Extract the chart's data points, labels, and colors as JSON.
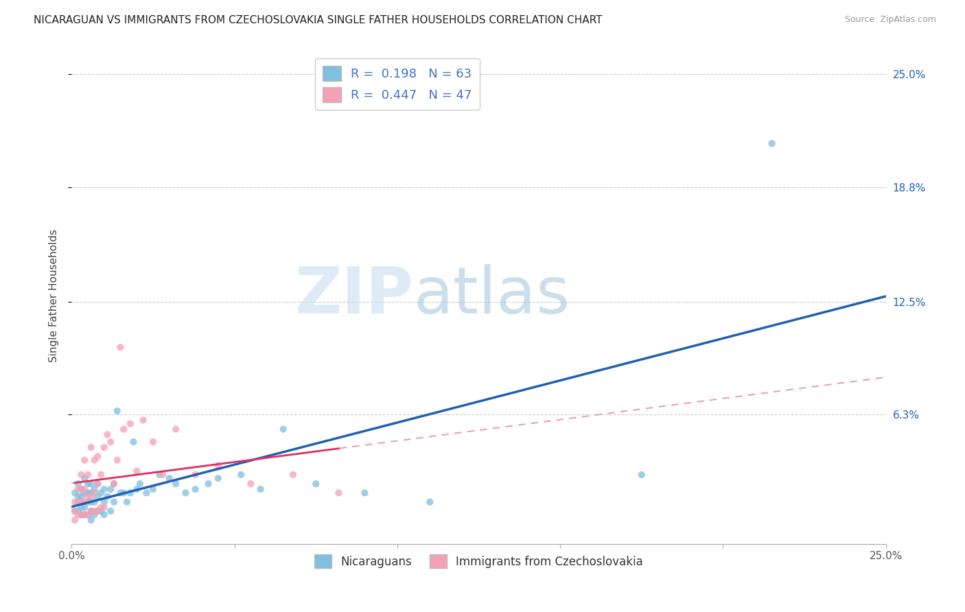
{
  "title": "NICARAGUAN VS IMMIGRANTS FROM CZECHOSLOVAKIA SINGLE FATHER HOUSEHOLDS CORRELATION CHART",
  "source": "Source: ZipAtlas.com",
  "ylabel": "Single Father Households",
  "ytick_labels_right": [
    "25.0%",
    "18.8%",
    "12.5%",
    "6.3%"
  ],
  "ytick_values_right": [
    0.25,
    0.188,
    0.125,
    0.063
  ],
  "xmin": 0.0,
  "xmax": 0.25,
  "ymin": -0.008,
  "ymax": 0.265,
  "blue_color": "#7fbfdf",
  "pink_color": "#f4a0b5",
  "blue_line_color": "#2060b0",
  "pink_line_color": "#e03060",
  "pink_dash_color": "#e8a0b8",
  "R_blue": 0.198,
  "N_blue": 63,
  "R_pink": 0.447,
  "N_pink": 47,
  "watermark_zip": "ZIP",
  "watermark_atlas": "atlas",
  "blue_scatter_x": [
    0.001,
    0.001,
    0.002,
    0.002,
    0.002,
    0.003,
    0.003,
    0.003,
    0.003,
    0.004,
    0.004,
    0.004,
    0.004,
    0.005,
    0.005,
    0.005,
    0.005,
    0.006,
    0.006,
    0.006,
    0.006,
    0.006,
    0.007,
    0.007,
    0.007,
    0.008,
    0.008,
    0.008,
    0.009,
    0.009,
    0.01,
    0.01,
    0.01,
    0.011,
    0.012,
    0.012,
    0.013,
    0.013,
    0.014,
    0.015,
    0.016,
    0.017,
    0.018,
    0.019,
    0.02,
    0.021,
    0.023,
    0.025,
    0.027,
    0.03,
    0.032,
    0.035,
    0.038,
    0.042,
    0.045,
    0.052,
    0.058,
    0.065,
    0.075,
    0.09,
    0.11,
    0.175,
    0.215
  ],
  "blue_scatter_y": [
    0.01,
    0.02,
    0.01,
    0.018,
    0.025,
    0.008,
    0.012,
    0.018,
    0.022,
    0.008,
    0.012,
    0.02,
    0.028,
    0.008,
    0.015,
    0.02,
    0.025,
    0.005,
    0.01,
    0.015,
    0.02,
    0.025,
    0.008,
    0.015,
    0.022,
    0.01,
    0.018,
    0.025,
    0.01,
    0.02,
    0.008,
    0.015,
    0.022,
    0.018,
    0.01,
    0.022,
    0.015,
    0.025,
    0.065,
    0.02,
    0.02,
    0.015,
    0.02,
    0.048,
    0.022,
    0.025,
    0.02,
    0.022,
    0.03,
    0.028,
    0.025,
    0.02,
    0.022,
    0.025,
    0.028,
    0.03,
    0.022,
    0.055,
    0.025,
    0.02,
    0.015,
    0.03,
    0.212
  ],
  "pink_scatter_x": [
    0.001,
    0.001,
    0.001,
    0.002,
    0.002,
    0.002,
    0.003,
    0.003,
    0.003,
    0.003,
    0.004,
    0.004,
    0.004,
    0.004,
    0.005,
    0.005,
    0.005,
    0.006,
    0.006,
    0.006,
    0.007,
    0.007,
    0.007,
    0.008,
    0.008,
    0.008,
    0.009,
    0.009,
    0.01,
    0.01,
    0.011,
    0.012,
    0.013,
    0.014,
    0.015,
    0.016,
    0.018,
    0.02,
    0.022,
    0.025,
    0.028,
    0.032,
    0.038,
    0.045,
    0.055,
    0.068,
    0.082
  ],
  "pink_scatter_y": [
    0.005,
    0.01,
    0.015,
    0.008,
    0.015,
    0.022,
    0.008,
    0.015,
    0.022,
    0.03,
    0.008,
    0.015,
    0.022,
    0.038,
    0.008,
    0.018,
    0.03,
    0.01,
    0.018,
    0.045,
    0.01,
    0.02,
    0.038,
    0.01,
    0.025,
    0.04,
    0.012,
    0.03,
    0.012,
    0.045,
    0.052,
    0.048,
    0.025,
    0.038,
    0.1,
    0.055,
    0.058,
    0.032,
    0.06,
    0.048,
    0.03,
    0.055,
    0.03,
    0.035,
    0.025,
    0.03,
    0.02
  ]
}
